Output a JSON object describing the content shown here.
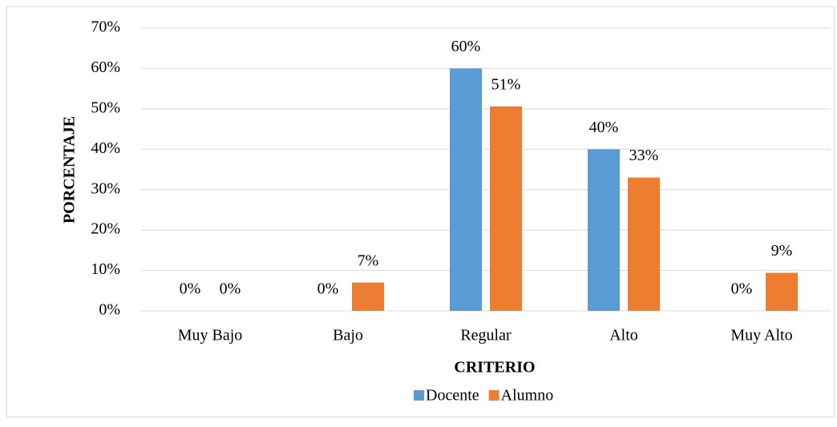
{
  "chart_data": {
    "type": "bar",
    "categories": [
      "Muy Bajo",
      "Bajo",
      "Regular",
      "Alto",
      "Muy Alto"
    ],
    "series": [
      {
        "name": "Docente",
        "color": "#5b9bd5",
        "values": [
          0,
          0,
          60,
          40,
          0
        ],
        "value_labels": [
          "0%",
          "0%",
          "60%",
          "40%",
          "0%"
        ]
      },
      {
        "name": "Alumno",
        "color": "#ed7d31",
        "values": [
          0,
          7,
          50.6,
          33,
          9.4
        ],
        "value_labels": [
          "0%",
          "7%",
          "51%",
          "33%",
          "9%"
        ]
      }
    ],
    "x_label": "CRITERIO",
    "y_label": "PORCENTAJE",
    "ylim": [
      0,
      70
    ],
    "yticks": [
      {
        "value": 0,
        "label": "0%"
      },
      {
        "value": 10,
        "label": "10%"
      },
      {
        "value": 20,
        "label": "20%"
      },
      {
        "value": 30,
        "label": "30%"
      },
      {
        "value": 40,
        "label": "40%"
      },
      {
        "value": 50,
        "label": "50%"
      },
      {
        "value": 60,
        "label": "60%"
      },
      {
        "value": 70,
        "label": "70%"
      }
    ],
    "grid": true,
    "legend": "bottom"
  }
}
